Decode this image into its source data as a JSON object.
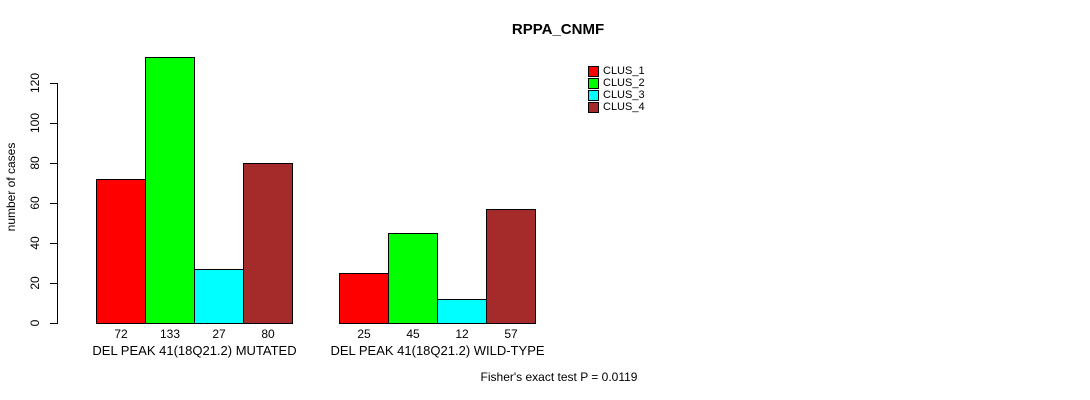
{
  "title": "RPPA_CNMF",
  "y_axis": {
    "label": "number of cases"
  },
  "footnote": "Fisher's exact test P = 0.0119",
  "chart_data": {
    "type": "bar",
    "title": "RPPA_CNMF",
    "xlabel": "",
    "ylabel": "number of cases",
    "ylim": [
      0,
      133
    ],
    "yticks": [
      0,
      20,
      40,
      60,
      80,
      100,
      120
    ],
    "grid": false,
    "legend_position": "top-right",
    "bar_value_labels": true,
    "categories": [
      "DEL PEAK 41(18Q21.2) MUTATED",
      "DEL PEAK 41(18Q21.2) WILD-TYPE"
    ],
    "series": [
      {
        "name": "CLUS_1",
        "color": "#ff0000",
        "values": [
          72,
          25
        ]
      },
      {
        "name": "CLUS_2",
        "color": "#00ff00",
        "values": [
          133,
          45
        ]
      },
      {
        "name": "CLUS_3",
        "color": "#00ffff",
        "values": [
          27,
          12
        ]
      },
      {
        "name": "CLUS_4",
        "color": "#a52a2a",
        "values": [
          80,
          57
        ]
      }
    ]
  }
}
